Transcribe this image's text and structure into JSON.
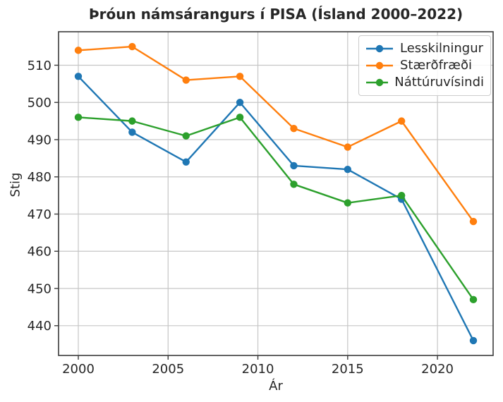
{
  "window": {
    "kind": "static-chart-image"
  },
  "chart_data": {
    "type": "line",
    "title": "Þróun námsárangurs í PISA (Ísland 2000–2022)",
    "xlabel": "Ár",
    "ylabel": "Stig",
    "x": [
      2000,
      2003,
      2006,
      2009,
      2012,
      2015,
      2018,
      2022
    ],
    "series": [
      {
        "name": "Lesskilningur",
        "color": "#1f77b4",
        "values": [
          507,
          492,
          484,
          500,
          483,
          482,
          474,
          436
        ]
      },
      {
        "name": "Stærðfræði",
        "color": "#ff7f0e",
        "values": [
          514,
          515,
          506,
          507,
          493,
          488,
          495,
          468
        ]
      },
      {
        "name": "Náttúruvísindi",
        "color": "#2ca02c",
        "values": [
          496,
          495,
          491,
          496,
          478,
          473,
          475,
          447
        ]
      }
    ],
    "xticks": [
      2000,
      2005,
      2010,
      2015,
      2020
    ],
    "yticks": [
      440,
      450,
      460,
      470,
      480,
      490,
      500,
      510
    ],
    "xlim": [
      1998.9,
      2023.1
    ],
    "ylim": [
      432,
      519
    ],
    "grid": true,
    "legend_position": "upper right",
    "marker": "circle"
  },
  "colors": {
    "background": "#ffffff",
    "grid": "#c6c6c6",
    "axis_frame": "#3c3c3c",
    "text": "#262626",
    "legend_border": "#cccccc"
  }
}
